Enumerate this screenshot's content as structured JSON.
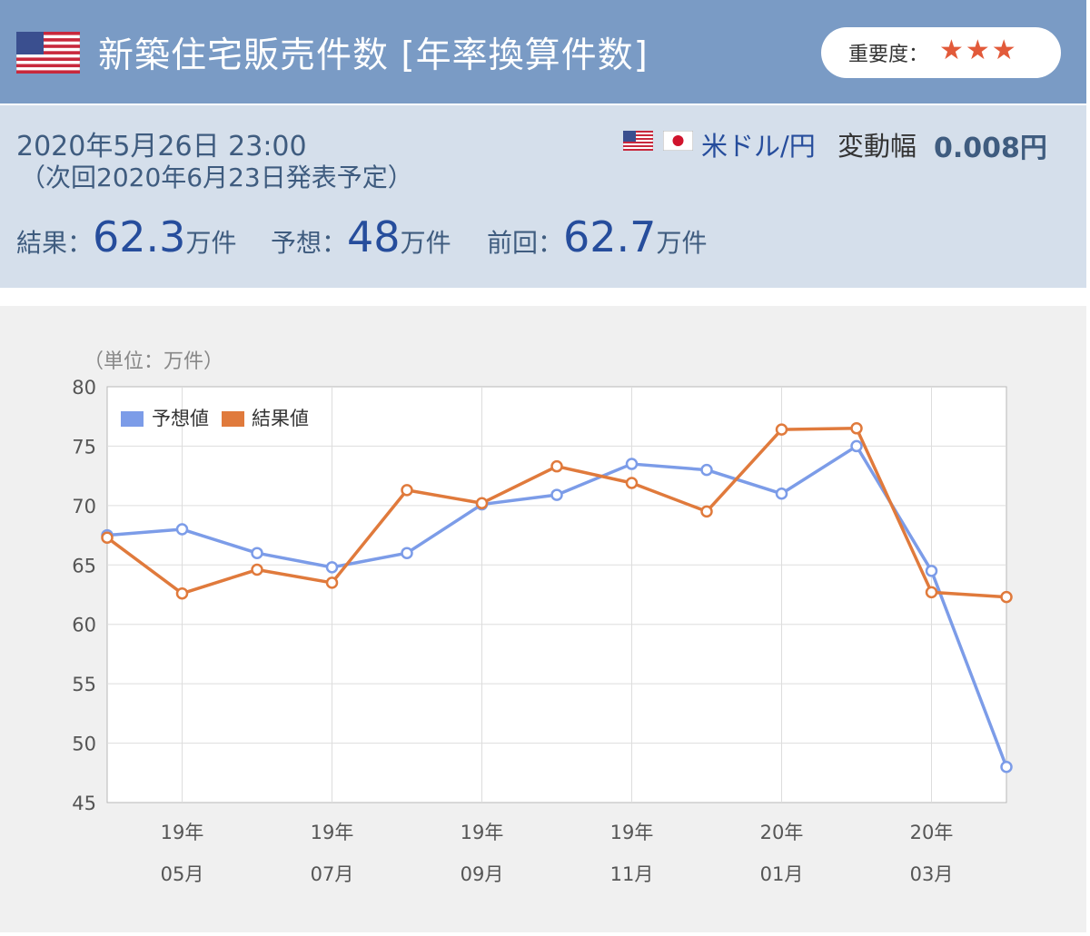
{
  "header": {
    "title": "新築住宅販売件数 [年率換算件数]",
    "importance_label": "重要度：",
    "importance_stars": "★★★",
    "importance_level": 3
  },
  "info": {
    "datetime": "2020年5月26日 23:00",
    "next_release": "（次回2020年6月23日発表予定）",
    "pair": "米ドル/円",
    "change_label": "変動幅",
    "change_value": "0.008円",
    "result_label": "結果：",
    "result_value": "62.3",
    "result_unit": "万件",
    "forecast_label": "予想：",
    "forecast_value": "48",
    "forecast_unit": "万件",
    "previous_label": "前回：",
    "previous_value": "62.7",
    "previous_unit": "万件"
  },
  "colors": {
    "header_bg": "#7a9bc5",
    "info_bg": "#d5dfeb",
    "forecast_line": "#7c9ce8",
    "result_line": "#e07a3c",
    "star": "#e25a3a"
  },
  "chart_data": {
    "type": "line",
    "unit_label": "（単位：万件）",
    "ylim": [
      45,
      80
    ],
    "yticks": [
      45,
      50,
      55,
      60,
      65,
      70,
      75,
      80
    ],
    "grid": true,
    "legend_position": "top-left",
    "x": [
      "19年04月",
      "19年05月",
      "19年06月",
      "19年07月",
      "19年08月",
      "19年09月",
      "19年10月",
      "19年11月",
      "19年12月",
      "20年01月",
      "20年02月",
      "20年03月",
      "20年04月"
    ],
    "x_tick_labels": [
      {
        "index": 1,
        "line1": "19年",
        "line2": "05月"
      },
      {
        "index": 3,
        "line1": "19年",
        "line2": "07月"
      },
      {
        "index": 5,
        "line1": "19年",
        "line2": "09月"
      },
      {
        "index": 7,
        "line1": "19年",
        "line2": "11月"
      },
      {
        "index": 9,
        "line1": "20年",
        "line2": "01月"
      },
      {
        "index": 11,
        "line1": "20年",
        "line2": "03月"
      }
    ],
    "series": [
      {
        "name": "予想値",
        "color": "#7c9ce8",
        "values": [
          67.5,
          68.0,
          66.0,
          64.8,
          66.0,
          70.1,
          70.9,
          73.5,
          73.0,
          71.0,
          75.0,
          64.5,
          48.0
        ]
      },
      {
        "name": "結果値",
        "color": "#e07a3c",
        "values": [
          67.3,
          62.6,
          64.6,
          63.5,
          71.3,
          70.2,
          73.3,
          71.9,
          69.5,
          76.4,
          76.5,
          62.7,
          62.3
        ]
      }
    ]
  }
}
